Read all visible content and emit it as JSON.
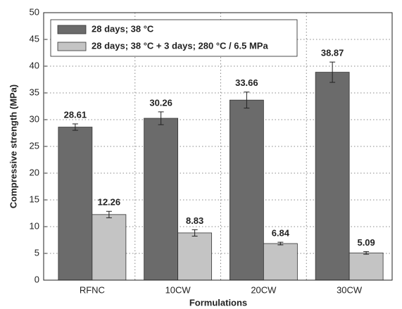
{
  "chart_data": {
    "type": "bar",
    "x_label": "Formulations",
    "y_label": "Compressive strength (MPa)",
    "categories": [
      "RFNC",
      "10CW",
      "20CW",
      "30CW"
    ],
    "series": [
      {
        "name": "28 days; 38 °C",
        "color": "#6b6b6b",
        "values": [
          28.61,
          30.26,
          33.66,
          38.87
        ],
        "errors": [
          0.6,
          1.2,
          1.5,
          1.9
        ]
      },
      {
        "name": "28 days; 38 °C + 3 days; 280 °C / 6.5 MPa",
        "color": "#c4c4c4",
        "values": [
          12.26,
          8.83,
          6.84,
          5.09
        ],
        "errors": [
          0.6,
          0.6,
          0.25,
          0.25
        ]
      }
    ],
    "ylim": [
      0,
      50
    ],
    "yticks": [
      0,
      5,
      10,
      15,
      20,
      25,
      30,
      35,
      40,
      45,
      50
    ],
    "grid": true,
    "legend": "upper left"
  }
}
